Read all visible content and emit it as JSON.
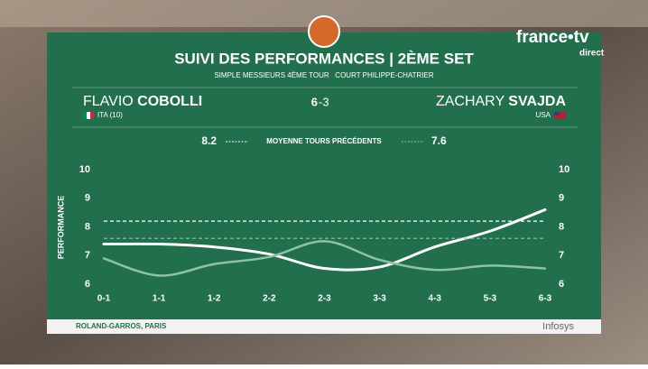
{
  "broadcaster": {
    "name": "france•tv",
    "status": "direct"
  },
  "header": {
    "title": "SUIVI DES PERFORMANCES | 2ÈME SET",
    "subtitle": "SIMPLE MESSIEURS 4ÈME TOUR   COURT PHILIPPE-CHATRIER"
  },
  "match": {
    "player1": {
      "first": "FLAVIO",
      "last": "COBOLLI",
      "country": "ITA (10)"
    },
    "player2": {
      "first": "ZACHARY",
      "last": "SVAJDA",
      "country": "USA"
    },
    "score": [
      "6",
      "-3"
    ],
    "average_label": "MOYENNE TOURS PRÉCÉDENTS"
  },
  "chart_data": {
    "type": "line",
    "y_label": "PERFORMANCE",
    "categories": [
      "0-1",
      "1-1",
      "1-2",
      "2-2",
      "2-3",
      "3-3",
      "4-3",
      "5-3",
      "6-3"
    ],
    "series": [
      {
        "name": "COBOLLI",
        "color": "#ffffff",
        "average": 8.2,
        "values": [
          7.4,
          7.4,
          7.3,
          7.05,
          6.55,
          6.6,
          7.3,
          7.85,
          8.6
        ]
      },
      {
        "name": "SVAJDA",
        "color": "#8cc3a6",
        "average": 7.6,
        "values": [
          6.9,
          6.3,
          6.7,
          6.95,
          7.5,
          6.85,
          6.5,
          6.65,
          6.55
        ]
      }
    ],
    "ylim": [
      6,
      10
    ],
    "yticks": [
      6,
      7,
      8,
      9,
      10
    ],
    "grid": false
  },
  "footer": {
    "location": "ROLAND-GARROS, PARIS",
    "sponsor": "Infosys"
  }
}
